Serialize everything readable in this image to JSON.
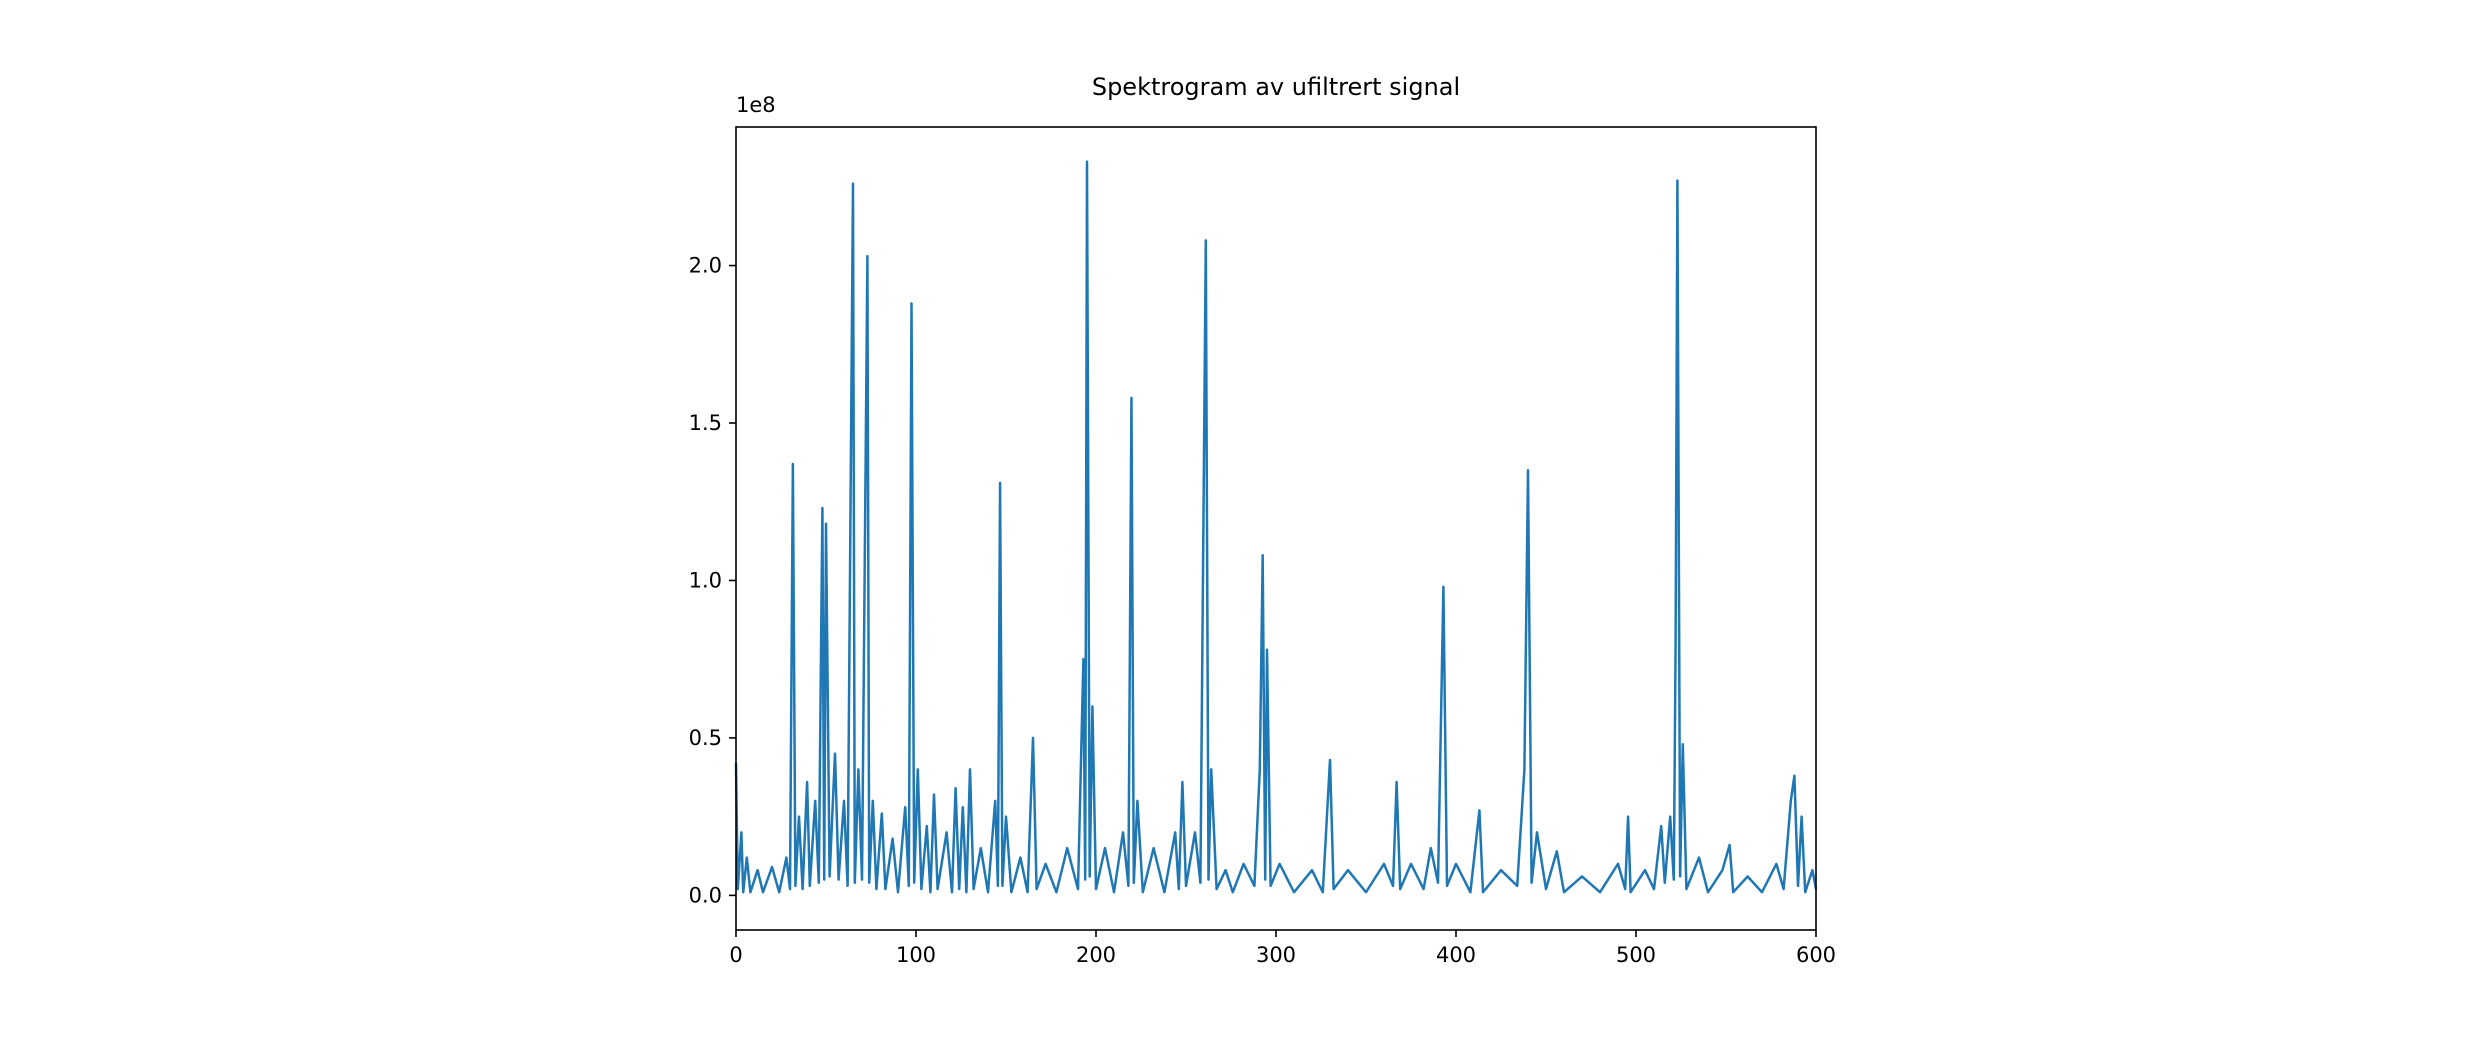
{
  "chart_data": {
    "type": "line",
    "title": "Spektrogram av ufiltrert signal",
    "y_offset_label": "1e8",
    "xlim": [
      0,
      600
    ],
    "xticks": [
      0,
      100,
      200,
      300,
      400,
      500,
      600
    ],
    "ylim": [
      -11000000,
      244000000
    ],
    "yticks": [
      {
        "value": 0,
        "label": "0.0"
      },
      {
        "value": 50000000,
        "label": "0.5"
      },
      {
        "value": 100000000,
        "label": "1.0"
      },
      {
        "value": 150000000,
        "label": "1.5"
      },
      {
        "value": 200000000,
        "label": "2.0"
      }
    ],
    "series": [
      {
        "color": "#1f77b4",
        "x": [
          0,
          1,
          3,
          4,
          6,
          8,
          12,
          15,
          20,
          24,
          28,
          30,
          31.6,
          33,
          35,
          37,
          39.5,
          41,
          44,
          46,
          48,
          49,
          50,
          52,
          55,
          57,
          60,
          62,
          65,
          66,
          68,
          70,
          73,
          74,
          76,
          78,
          81,
          83,
          87,
          90,
          94,
          96,
          97.5,
          99,
          101,
          103,
          106,
          108,
          110,
          112,
          117,
          120,
          122,
          124,
          126,
          128,
          130,
          132,
          136,
          140,
          144,
          145.5,
          146.7,
          148,
          150,
          153,
          158,
          162,
          165,
          167,
          172,
          178,
          184,
          190,
          193,
          194,
          195,
          196.5,
          198,
          200,
          205,
          210,
          215,
          218,
          219.7,
          221,
          223,
          226,
          232,
          238,
          244,
          246,
          248,
          250,
          255,
          258,
          261,
          262.5,
          264,
          267,
          272,
          276,
          282,
          288,
          291,
          292.6,
          294,
          295,
          297,
          302,
          310,
          320,
          326,
          330,
          332,
          340,
          350,
          360,
          365,
          367,
          369,
          375,
          382,
          386,
          390,
          393,
          395,
          400,
          408,
          413,
          415,
          425,
          434,
          438,
          440,
          442,
          445,
          450,
          456,
          460,
          470,
          480,
          490,
          494,
          495.6,
          497,
          505,
          510,
          514,
          516,
          519,
          521,
          522,
          523,
          524.5,
          526,
          528,
          535,
          540,
          548,
          552,
          554,
          562,
          570,
          578,
          582,
          586,
          588,
          590,
          592,
          594,
          598,
          600
        ],
        "values": [
          42000000,
          2000000,
          20000000,
          1000000,
          12000000,
          1000000,
          8000000,
          1000000,
          9000000,
          1000000,
          12000000,
          2000000,
          137000000,
          3000000,
          25000000,
          2000000,
          36000000,
          3000000,
          30000000,
          4000000,
          123000000,
          5000000,
          118000000,
          6000000,
          45000000,
          5000000,
          30000000,
          3000000,
          226000000,
          4000000,
          40000000,
          5000000,
          203000000,
          4000000,
          30000000,
          2000000,
          26000000,
          2000000,
          18000000,
          1000000,
          28000000,
          3000000,
          188000000,
          4000000,
          40000000,
          2000000,
          22000000,
          1000000,
          32000000,
          2000000,
          20000000,
          1000000,
          34000000,
          2000000,
          28000000,
          1000000,
          40000000,
          2000000,
          15000000,
          1000000,
          30000000,
          3000000,
          131000000,
          3000000,
          25000000,
          1000000,
          12000000,
          1000000,
          50000000,
          2000000,
          10000000,
          1000000,
          15000000,
          2000000,
          75000000,
          5000000,
          233000000,
          6000000,
          60000000,
          2000000,
          15000000,
          1000000,
          20000000,
          3000000,
          158000000,
          4000000,
          30000000,
          1000000,
          15000000,
          1000000,
          20000000,
          2000000,
          36000000,
          3000000,
          20000000,
          4000000,
          208000000,
          5000000,
          40000000,
          2000000,
          8000000,
          1000000,
          10000000,
          3000000,
          40000000,
          108000000,
          5000000,
          78000000,
          3000000,
          10000000,
          1000000,
          8000000,
          1000000,
          43000000,
          2000000,
          8000000,
          1000000,
          10000000,
          3000000,
          36000000,
          2000000,
          10000000,
          2000000,
          15000000,
          4000000,
          98000000,
          3000000,
          10000000,
          1000000,
          27000000,
          1000000,
          8000000,
          3000000,
          40000000,
          135000000,
          4000000,
          20000000,
          2000000,
          14000000,
          1000000,
          6000000,
          1000000,
          10000000,
          2000000,
          25000000,
          1000000,
          8000000,
          2000000,
          22000000,
          4000000,
          25000000,
          5000000,
          80000000,
          227000000,
          6000000,
          48000000,
          2000000,
          12000000,
          1000000,
          8000000,
          16000000,
          1000000,
          6000000,
          1000000,
          10000000,
          2000000,
          30000000,
          38000000,
          3000000,
          25000000,
          1000000,
          8000000,
          2000000
        ]
      }
    ]
  }
}
